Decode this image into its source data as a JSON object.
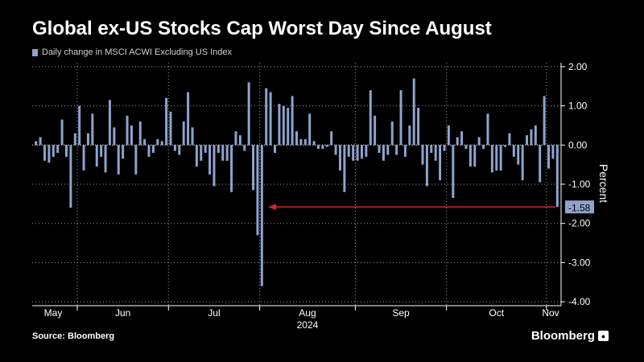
{
  "title": "Global ex-US Stocks Cap Worst Day Since August",
  "source": "Source: Bloomberg",
  "brand": "Bloomberg",
  "colors": {
    "bar": "#8ea4cf",
    "arrow": "#d2262f",
    "grid": "#9a9a9a",
    "background": "#000000"
  },
  "chart_data": {
    "type": "bar",
    "legend": "Daily change in MSCI ACWI Excluding US Index",
    "ylabel": "Percent",
    "ylim": [
      -4.1,
      2.1
    ],
    "yticks": [
      2.0,
      1.0,
      0.0,
      -1.0,
      -2.0,
      -3.0,
      -4.0
    ],
    "ytick_labels": [
      "2.00",
      "1.00",
      "0.00",
      "-1.00",
      "-2.00",
      "-3.00",
      "-4.00"
    ],
    "xtick_labels": [
      "May",
      "Jun",
      "Jul",
      "Aug",
      "Sep",
      "Oct",
      "Nov"
    ],
    "year_label": "2024",
    "last_value_label": "-1.58",
    "grid": true,
    "annotation": "arrow from last value back to August low",
    "series": [
      {
        "values": [
          0.1,
          0.2,
          -0.4,
          -0.45,
          -0.3,
          -0.2,
          0.65,
          -0.3,
          -1.6,
          0.3,
          1.0,
          -0.65,
          0.3,
          0.8,
          -0.55,
          -0.3,
          -0.7,
          1.15,
          0.45,
          -0.75,
          -0.35,
          0.75,
          0.5,
          -0.75,
          0.6,
          0.15,
          -0.3,
          -0.2,
          0.15,
          0.1,
          1.2,
          0.85,
          -0.15,
          -0.25,
          0.6,
          1.35,
          0.45,
          -0.55,
          -0.4,
          -0.2,
          -0.75,
          -1.05,
          -0.2,
          -0.4,
          -0.4,
          -1.2,
          0.35,
          0.25,
          -0.15,
          1.6,
          -1.15,
          -2.3,
          -3.6,
          1.45,
          1.35,
          -0.2,
          1.05,
          1.0,
          0.95,
          1.25,
          0.35,
          0.15,
          0.15,
          0.8,
          0.1,
          -0.1,
          -0.1,
          -0.05,
          0.35,
          -0.25,
          -0.65,
          -1.2,
          -0.3,
          -0.4,
          -0.4,
          -0.35,
          -0.3,
          1.4,
          0.75,
          -0.2,
          -0.4,
          -0.25,
          0.6,
          -0.25,
          1.4,
          -0.3,
          0.5,
          1.7,
          0.95,
          -0.5,
          -1.05,
          -0.2,
          -0.4,
          -0.9,
          -0.15,
          0.5,
          -1.35,
          0.2,
          0.35,
          -0.1,
          -0.55,
          -0.55,
          0.2,
          -0.1,
          0.8,
          -0.7,
          -0.65,
          -0.65,
          -0.05,
          0.3,
          -0.3,
          -0.5,
          -0.9,
          0.25,
          0.4,
          0.5,
          -0.95,
          1.25,
          -0.6,
          -0.35,
          -1.58
        ]
      }
    ]
  }
}
